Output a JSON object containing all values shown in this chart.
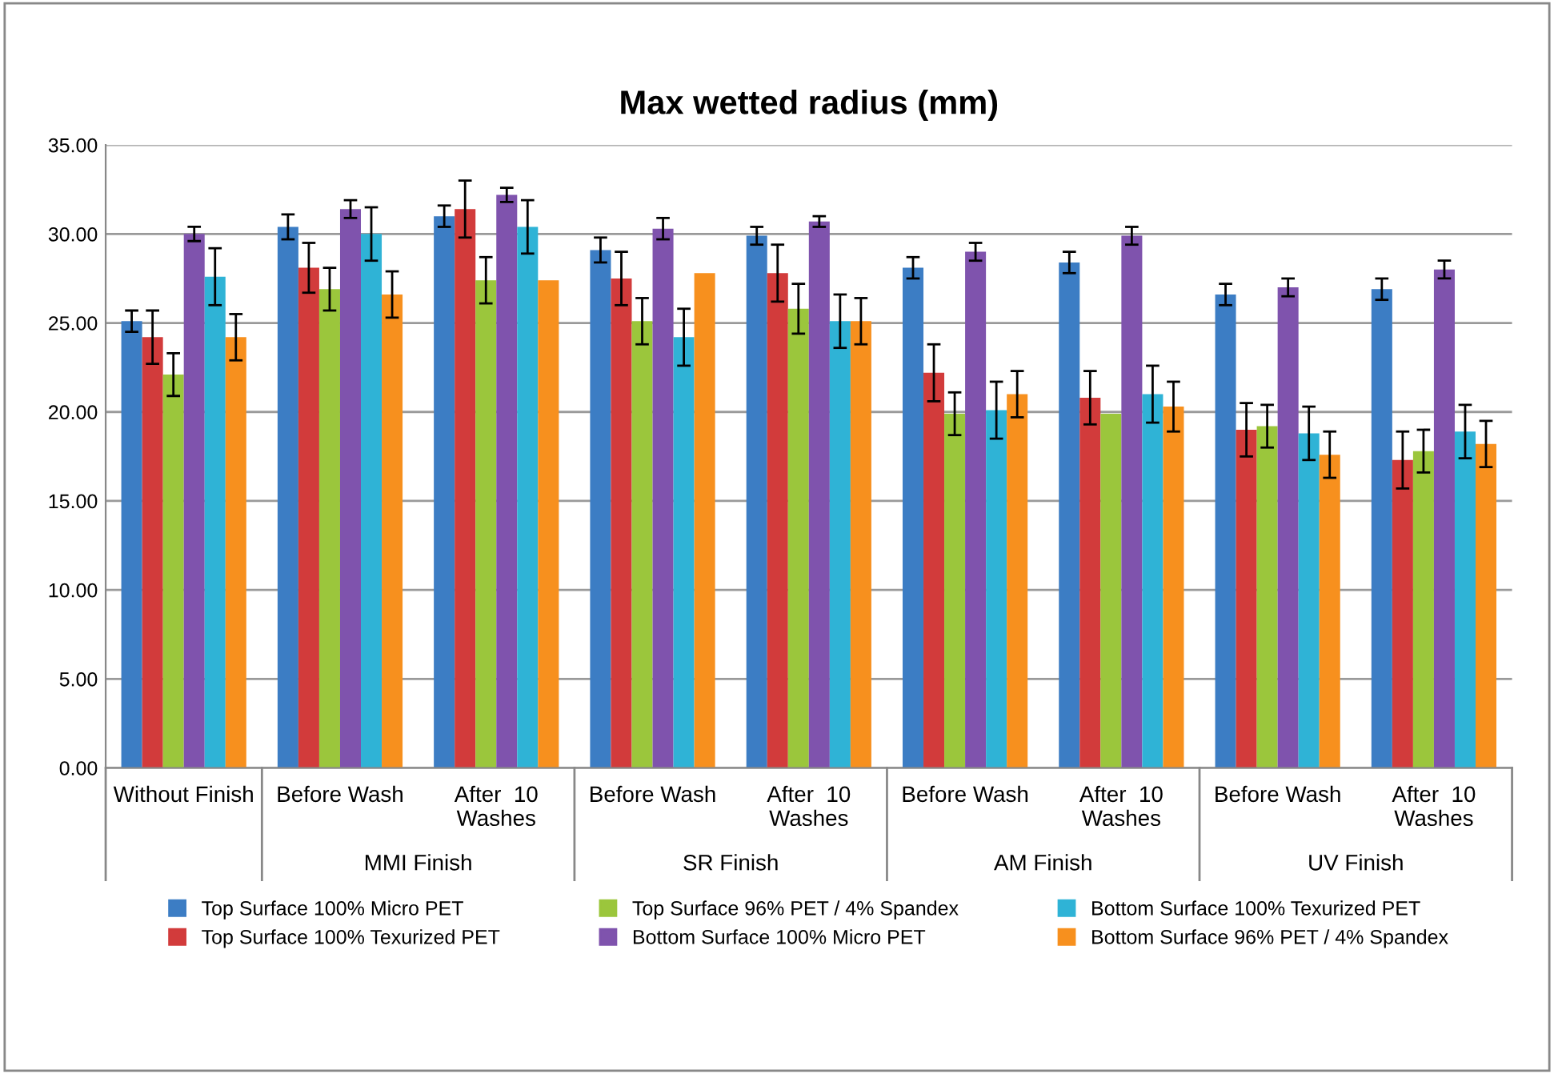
{
  "chart_data": {
    "type": "bar",
    "title": "Max wetted radius (mm)",
    "categories": [
      "Without Finish",
      "Before Wash",
      "After  10\nWashes",
      "Before Wash",
      "After  10\nWashes",
      "Before Wash",
      "After  10\nWashes",
      "Before Wash",
      "After  10\nWashes"
    ],
    "annotations": [
      "MMI Finish",
      "SR Finish",
      "AM Finish",
      "UV Finish"
    ],
    "series": [
      {
        "name": "Top Surface 100% Micro PET",
        "color": "#3c7dc4",
        "values": [
          25.1,
          30.4,
          31.0,
          29.1,
          29.9,
          28.1,
          28.4,
          26.6,
          26.9
        ],
        "errors": [
          0.6,
          0.7,
          0.6,
          0.7,
          0.5,
          0.6,
          0.6,
          0.6,
          0.6
        ]
      },
      {
        "name": "Top Surface 100% Texurized PET",
        "color": "#d23b3b",
        "values": [
          24.2,
          28.1,
          31.4,
          27.5,
          27.8,
          22.2,
          20.8,
          19.0,
          17.3
        ],
        "errors": [
          1.5,
          1.4,
          1.6,
          1.5,
          1.6,
          1.6,
          1.5,
          1.5,
          1.6
        ]
      },
      {
        "name": "Top Surface 96% PET / 4% Spandex",
        "color": "#9bc63c",
        "values": [
          22.1,
          26.9,
          27.4,
          25.1,
          25.8,
          19.9,
          19.9,
          19.2,
          17.8
        ],
        "errors": [
          1.2,
          1.2,
          1.3,
          1.3,
          1.4,
          1.2,
          null,
          1.2,
          1.2
        ]
      },
      {
        "name": "Bottom Surface 100% Micro PET",
        "color": "#7f53ad",
        "values": [
          30.0,
          31.4,
          32.2,
          30.3,
          30.7,
          29.0,
          29.9,
          27.0,
          28.0
        ],
        "errors": [
          0.4,
          0.5,
          0.4,
          0.6,
          0.3,
          0.5,
          0.5,
          0.5,
          0.5
        ]
      },
      {
        "name": "Bottom Surface 100% Texurized PET",
        "color": "#2fb3d6",
        "values": [
          27.6,
          30.0,
          30.4,
          24.2,
          25.1,
          20.1,
          21.0,
          18.8,
          18.9
        ],
        "errors": [
          1.6,
          1.5,
          1.5,
          1.6,
          1.5,
          1.6,
          1.6,
          1.5,
          1.5
        ]
      },
      {
        "name": "Bottom Surface 96% PET / 4% Spandex",
        "color": "#f7901e",
        "values": [
          24.2,
          26.6,
          27.4,
          27.8,
          25.1,
          21.0,
          20.3,
          17.6,
          18.2
        ],
        "errors": [
          1.3,
          1.3,
          null,
          null,
          1.3,
          1.3,
          1.4,
          1.3,
          1.3
        ]
      }
    ],
    "ylim": [
      0,
      35
    ],
    "yticks": [
      {
        "value": 0,
        "label": "0.00"
      },
      {
        "value": 5,
        "label": "5.00"
      },
      {
        "value": 10,
        "label": "10.00"
      },
      {
        "value": 15,
        "label": "15.00"
      },
      {
        "value": 20,
        "label": "20.00"
      },
      {
        "value": 25,
        "label": "25.00"
      },
      {
        "value": 30,
        "label": "30.00"
      },
      {
        "value": 35,
        "label": "35.00"
      }
    ],
    "grid": "y",
    "legend": "bottom"
  }
}
